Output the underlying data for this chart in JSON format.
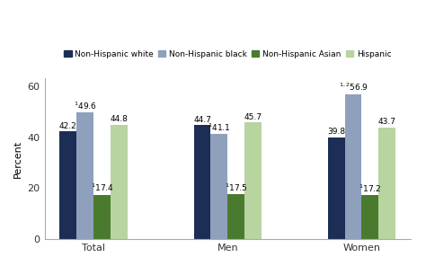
{
  "groups": [
    "Total",
    "Men",
    "Women"
  ],
  "series": {
    "Non-Hispanic white": [
      42.2,
      44.7,
      39.8
    ],
    "Non-Hispanic black": [
      49.6,
      41.1,
      56.9
    ],
    "Non-Hispanic Asian": [
      17.4,
      17.5,
      17.2
    ],
    "Hispanic": [
      44.8,
      45.7,
      43.7
    ]
  },
  "superscripts": {
    "Non-Hispanic black": [
      "1",
      "1",
      "1,2"
    ],
    "Non-Hispanic Asian": [
      "1",
      "1",
      "1"
    ]
  },
  "colors": {
    "Non-Hispanic white": "#1c2e55",
    "Non-Hispanic black": "#8fa0bd",
    "Non-Hispanic Asian": "#4a7a2e",
    "Hispanic": "#b8d4a0"
  },
  "ylabel": "Percent",
  "ylim": [
    0,
    63
  ],
  "yticks": [
    0,
    20,
    40,
    60
  ],
  "bar_width": 0.19,
  "group_centers": [
    1.0,
    2.5,
    4.0
  ],
  "background_color": "#ffffff",
  "legend_order": [
    "Non-Hispanic white",
    "Non-Hispanic black",
    "Non-Hispanic Asian",
    "Hispanic"
  ],
  "label_fontsize": 6.5,
  "axis_fontsize": 8,
  "legend_fontsize": 6.5
}
